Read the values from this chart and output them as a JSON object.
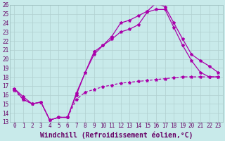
{
  "xlabel": "Windchill (Refroidissement éolien,°C)",
  "bg_color": "#c8eaea",
  "line_color": "#aa00aa",
  "grid_color": "#b0d0d0",
  "xlim": [
    -0.5,
    23.5
  ],
  "ylim": [
    13,
    26
  ],
  "xticks": [
    0,
    1,
    2,
    3,
    4,
    5,
    6,
    7,
    8,
    9,
    10,
    11,
    12,
    13,
    14,
    15,
    16,
    17,
    18,
    19,
    20,
    21,
    22,
    23
  ],
  "yticks": [
    13,
    14,
    15,
    16,
    17,
    18,
    19,
    20,
    21,
    22,
    23,
    24,
    25,
    26
  ],
  "line1_x": [
    0,
    1,
    2,
    3,
    4,
    5,
    6,
    7,
    8,
    9,
    10,
    11,
    12,
    13,
    14,
    15,
    16,
    17,
    18,
    19,
    20,
    21,
    22,
    23
  ],
  "line1_y": [
    16.7,
    15.8,
    15.0,
    15.2,
    13.2,
    13.5,
    13.5,
    16.2,
    18.5,
    20.8,
    21.5,
    22.5,
    24.0,
    24.3,
    24.8,
    25.3,
    26.2,
    25.8,
    24.0,
    22.2,
    20.5,
    19.8,
    19.2,
    18.5
  ],
  "line2_x": [
    0,
    1,
    2,
    3,
    4,
    5,
    6,
    7,
    8,
    9,
    10,
    11,
    12,
    13,
    14,
    15,
    16,
    17,
    18,
    19,
    20,
    21,
    22,
    23
  ],
  "line2_y": [
    16.7,
    15.5,
    15.0,
    15.2,
    13.2,
    13.5,
    13.5,
    16.0,
    18.5,
    20.5,
    21.5,
    22.2,
    23.0,
    23.3,
    23.8,
    25.2,
    25.5,
    25.5,
    23.5,
    21.5,
    19.8,
    18.5,
    18.0,
    18.0
  ],
  "line3_x": [
    0,
    1,
    2,
    3,
    4,
    5,
    6,
    7,
    8,
    9,
    10,
    11,
    12,
    13,
    14,
    15,
    16,
    17,
    18,
    19,
    20,
    21,
    22,
    23
  ],
  "line3_y": [
    16.5,
    15.5,
    15.0,
    15.2,
    13.2,
    13.5,
    13.5,
    15.5,
    16.3,
    16.6,
    16.9,
    17.1,
    17.3,
    17.4,
    17.5,
    17.6,
    17.7,
    17.8,
    17.9,
    18.0,
    18.0,
    18.0,
    18.0,
    18.0
  ],
  "marker": "*",
  "markersize": 3,
  "linewidth": 0.9,
  "tick_fontsize": 5.5,
  "label_fontsize": 7.0
}
